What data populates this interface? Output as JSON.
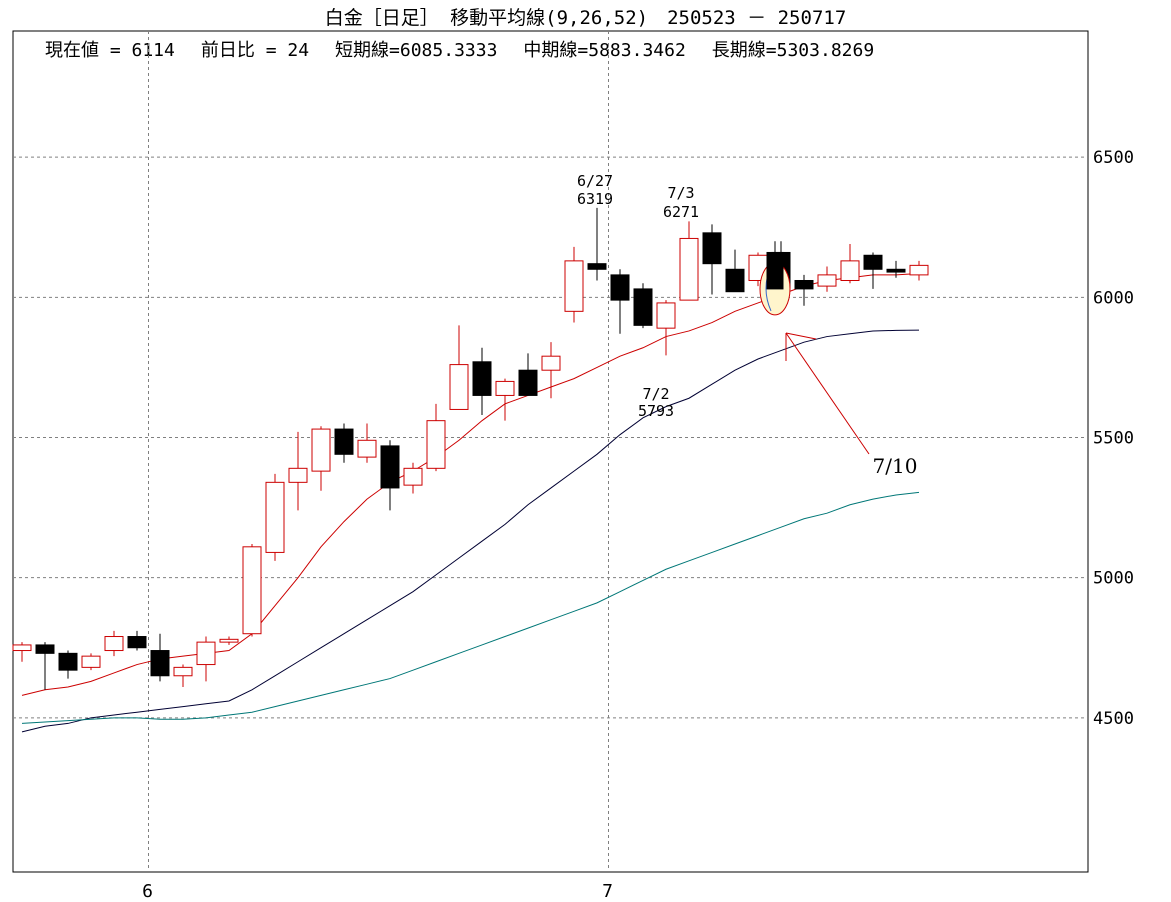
{
  "header": {
    "title": "白金［日足］ 移動平均線(9,26,52)　250523 － 250717",
    "current_label": "現在値 = 6114",
    "change_label": "前日比 = 24",
    "short_label": "短期線=6085.3333",
    "mid_label": "中期線=5883.3462",
    "long_label": "長期線=5303.8269"
  },
  "chart_data": {
    "type": "candlestick",
    "title": "白金［日足］ 移動平均線(9,26,52)　250523 － 250717",
    "ylim": [
      3950,
      6950
    ],
    "yticks": [
      4500,
      5000,
      5500,
      6000,
      6500
    ],
    "xtick_labels": [
      {
        "label": "6",
        "index": 5.5
      },
      {
        "label": "7",
        "index": 25.5
      }
    ],
    "grid": true,
    "colors": {
      "up": "#cc0000",
      "down": "#000000",
      "short_ma": "#cc0000",
      "mid_ma": "#000033",
      "long_ma": "#007777",
      "grid": "#808080",
      "highlight_fill": "#fff5cc",
      "highlight_stroke": "#cc0000",
      "blue_stroke": "#3366cc"
    },
    "candles": [
      {
        "o": 4740,
        "h": 4770,
        "l": 4700,
        "c": 4760
      },
      {
        "o": 4760,
        "h": 4770,
        "l": 4600,
        "c": 4730
      },
      {
        "o": 4730,
        "h": 4740,
        "l": 4640,
        "c": 4670
      },
      {
        "o": 4680,
        "h": 4730,
        "l": 4670,
        "c": 4720
      },
      {
        "o": 4740,
        "h": 4810,
        "l": 4720,
        "c": 4790
      },
      {
        "o": 4790,
        "h": 4810,
        "l": 4740,
        "c": 4750
      },
      {
        "o": 4740,
        "h": 4800,
        "l": 4630,
        "c": 4650
      },
      {
        "o": 4650,
        "h": 4690,
        "l": 4610,
        "c": 4680
      },
      {
        "o": 4690,
        "h": 4790,
        "l": 4630,
        "c": 4770
      },
      {
        "o": 4770,
        "h": 4790,
        "l": 4760,
        "c": 4780
      },
      {
        "o": 4800,
        "h": 5120,
        "l": 4790,
        "c": 5110
      },
      {
        "o": 5090,
        "h": 5370,
        "l": 5060,
        "c": 5340
      },
      {
        "o": 5340,
        "h": 5520,
        "l": 5240,
        "c": 5390
      },
      {
        "o": 5380,
        "h": 5540,
        "l": 5310,
        "c": 5530
      },
      {
        "o": 5530,
        "h": 5550,
        "l": 5410,
        "c": 5440
      },
      {
        "o": 5430,
        "h": 5550,
        "l": 5410,
        "c": 5490
      },
      {
        "o": 5470,
        "h": 5490,
        "l": 5240,
        "c": 5320
      },
      {
        "o": 5330,
        "h": 5410,
        "l": 5300,
        "c": 5390
      },
      {
        "o": 5390,
        "h": 5620,
        "l": 5380,
        "c": 5560
      },
      {
        "o": 5600,
        "h": 5900,
        "l": 5600,
        "c": 5760
      },
      {
        "o": 5770,
        "h": 5820,
        "l": 5580,
        "c": 5650
      },
      {
        "o": 5650,
        "h": 5710,
        "l": 5560,
        "c": 5700
      },
      {
        "o": 5740,
        "h": 5800,
        "l": 5650,
        "c": 5650
      },
      {
        "o": 5740,
        "h": 5840,
        "l": 5640,
        "c": 5790
      },
      {
        "o": 5950,
        "h": 6180,
        "l": 5910,
        "c": 6130
      },
      {
        "o": 6120,
        "h": 6319,
        "l": 6060,
        "c": 6100
      },
      {
        "o": 6080,
        "h": 6100,
        "l": 5870,
        "c": 5990
      },
      {
        "o": 6030,
        "h": 6050,
        "l": 5890,
        "c": 5900
      },
      {
        "o": 5890,
        "h": 5990,
        "l": 5793,
        "c": 5980
      },
      {
        "o": 5990,
        "h": 6271,
        "l": 5990,
        "c": 6210
      },
      {
        "o": 6230,
        "h": 6260,
        "l": 6010,
        "c": 6120
      },
      {
        "o": 6100,
        "h": 6170,
        "l": 6020,
        "c": 6020
      },
      {
        "o": 6060,
        "h": 6160,
        "l": 6040,
        "c": 6150
      },
      {
        "o": 6160,
        "h": 6200,
        "l": 6030,
        "c": 6030
      },
      {
        "o": 6060,
        "h": 6080,
        "l": 5970,
        "c": 6030
      },
      {
        "o": 6040,
        "h": 6110,
        "l": 6020,
        "c": 6080
      },
      {
        "o": 6060,
        "h": 6190,
        "l": 6050,
        "c": 6130
      },
      {
        "o": 6150,
        "h": 6160,
        "l": 6030,
        "c": 6100
      },
      {
        "o": 6100,
        "h": 6130,
        "l": 6070,
        "c": 6090
      },
      {
        "o": 6080,
        "h": 6130,
        "l": 6060,
        "c": 6114
      }
    ],
    "series": [
      {
        "name": "短期線",
        "values": [
          4580,
          4600,
          4610,
          4630,
          4660,
          4690,
          4710,
          4720,
          4730,
          4740,
          4800,
          4900,
          5000,
          5110,
          5200,
          5280,
          5340,
          5380,
          5430,
          5490,
          5560,
          5620,
          5650,
          5680,
          5710,
          5750,
          5790,
          5820,
          5860,
          5880,
          5910,
          5950,
          5980,
          6010,
          6040,
          6060,
          6070,
          6080,
          6080,
          6085
        ]
      },
      {
        "name": "中期線",
        "values": [
          4450,
          4470,
          4480,
          4500,
          4510,
          4520,
          4530,
          4540,
          4550,
          4560,
          4600,
          4650,
          4700,
          4750,
          4800,
          4850,
          4900,
          4950,
          5010,
          5070,
          5130,
          5190,
          5260,
          5320,
          5380,
          5440,
          5510,
          5570,
          5610,
          5640,
          5690,
          5740,
          5780,
          5810,
          5840,
          5860,
          5870,
          5880,
          5882,
          5883
        ]
      },
      {
        "name": "長期線",
        "values": [
          4480,
          4485,
          4490,
          4495,
          4500,
          4500,
          4495,
          4495,
          4500,
          4510,
          4520,
          4540,
          4560,
          4580,
          4600,
          4620,
          4640,
          4670,
          4700,
          4730,
          4760,
          4790,
          4820,
          4850,
          4880,
          4910,
          4950,
          4990,
          5030,
          5060,
          5090,
          5120,
          5150,
          5180,
          5210,
          5230,
          5260,
          5280,
          5295,
          5304
        ]
      }
    ],
    "annotations": [
      {
        "date": "6/27",
        "value": "6319"
      },
      {
        "date": "7/3",
        "value": "6271"
      },
      {
        "date": "7/2",
        "value": "5793"
      },
      {
        "date": "7/10",
        "value": ""
      }
    ]
  }
}
